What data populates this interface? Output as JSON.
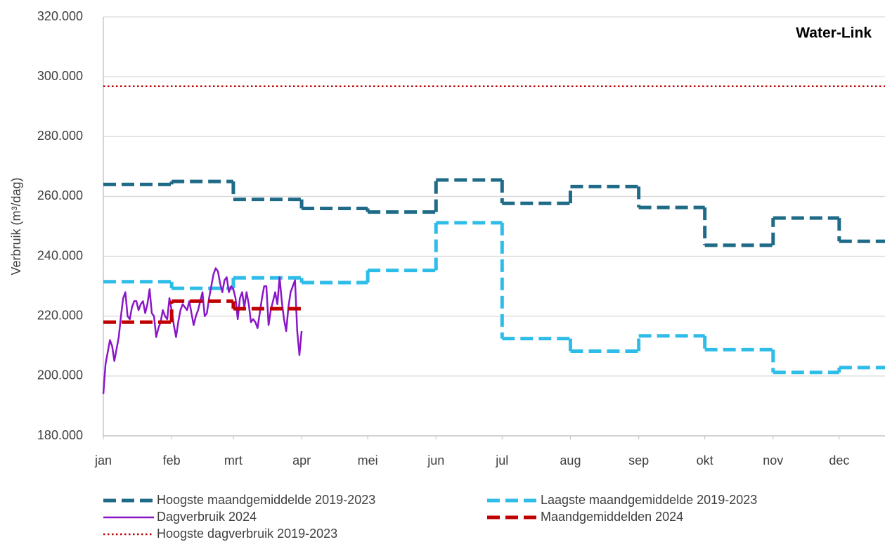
{
  "chart_data": {
    "type": "line",
    "title": "Water-Link",
    "y_label": "Verbruik (m³/dag)",
    "ylim": [
      180000,
      320000
    ],
    "yticks": [
      {
        "value": 180000,
        "label": "180.000"
      },
      {
        "value": 200000,
        "label": "200.000"
      },
      {
        "value": 220000,
        "label": "220.000"
      },
      {
        "value": 240000,
        "label": "240.000"
      },
      {
        "value": 260000,
        "label": "260.000"
      },
      {
        "value": 280000,
        "label": "280.000"
      },
      {
        "value": 300000,
        "label": "300.000"
      },
      {
        "value": 320000,
        "label": "320.000"
      }
    ],
    "xlim": [
      0,
      365
    ],
    "xticks": [
      {
        "value": 0,
        "label": "jan"
      },
      {
        "value": 31,
        "label": "feb"
      },
      {
        "value": 59,
        "label": "mrt"
      },
      {
        "value": 90,
        "label": "apr"
      },
      {
        "value": 120,
        "label": "mei"
      },
      {
        "value": 151,
        "label": "jun"
      },
      {
        "value": 181,
        "label": "jul"
      },
      {
        "value": 212,
        "label": "aug"
      },
      {
        "value": 243,
        "label": "sep"
      },
      {
        "value": 273,
        "label": "okt"
      },
      {
        "value": 304,
        "label": "nov"
      },
      {
        "value": 334,
        "label": "dec"
      }
    ],
    "grid": true,
    "legend": "bottom",
    "series": [
      {
        "name": "Hoogste maandgemiddelde 2019-2023",
        "color": "#1f6b87",
        "style": "dashed",
        "values": [
          264000,
          265000,
          259000,
          256000,
          254800,
          265500,
          257700,
          263300,
          256300,
          243700,
          252800,
          245000
        ]
      },
      {
        "name": "Laagste maandgemiddelde 2019-2023",
        "color": "#2ebde8",
        "style": "dashed",
        "values": [
          231500,
          229300,
          232800,
          231200,
          235300,
          251200,
          212500,
          208300,
          213400,
          208800,
          201200,
          202800
        ]
      },
      {
        "name": "Dagverbruik 2024",
        "color": "#8a17c7",
        "style": "solid",
        "x": [
          0,
          1,
          2,
          3,
          4,
          5,
          6,
          7,
          8,
          9,
          10,
          11,
          12,
          13,
          14,
          15,
          16,
          17,
          18,
          19,
          20,
          21,
          22,
          23,
          24,
          25,
          26,
          27,
          28,
          29,
          30,
          31,
          32,
          33,
          34,
          35,
          36,
          37,
          38,
          39,
          40,
          41,
          42,
          43,
          44,
          45,
          46,
          47,
          48,
          49,
          50,
          51,
          52,
          53,
          54,
          55,
          56,
          57,
          58,
          59,
          60,
          61,
          62,
          63,
          64,
          65,
          66,
          67,
          68,
          69,
          70,
          71,
          72,
          73,
          74,
          75,
          76,
          77,
          78,
          79,
          80,
          81,
          82,
          83,
          84,
          85,
          86,
          87,
          88,
          89,
          90
        ],
        "values": [
          194000,
          204000,
          208000,
          212000,
          210000,
          205000,
          209000,
          213000,
          220000,
          226000,
          228000,
          220000,
          219000,
          223000,
          225000,
          225000,
          222000,
          224000,
          225000,
          221000,
          224000,
          229000,
          221000,
          220000,
          213000,
          216000,
          218000,
          222000,
          220000,
          219000,
          226000,
          222000,
          217000,
          213000,
          218000,
          222000,
          224000,
          223000,
          222000,
          225000,
          221000,
          217000,
          220000,
          222000,
          225000,
          228000,
          220000,
          221000,
          226000,
          230000,
          234000,
          236000,
          235000,
          231000,
          228000,
          232000,
          233000,
          228000,
          230000,
          229000,
          226000,
          219000,
          226000,
          228000,
          223000,
          228000,
          224000,
          218000,
          219000,
          218000,
          216000,
          221000,
          226000,
          230000,
          230000,
          217000,
          222000,
          225000,
          228000,
          224000,
          233000,
          225000,
          219000,
          215000,
          223000,
          228000,
          230000,
          232000,
          215000,
          207000,
          215000
        ]
      },
      {
        "name": "Maandgemiddelden 2024",
        "color": "#c00000",
        "style": "dashed",
        "values": [
          218000,
          225000,
          222500
        ]
      },
      {
        "name": "Hoogste dagverbruik 2019-2023",
        "color": "#c00000",
        "style": "dotted",
        "value": 296800
      }
    ]
  }
}
